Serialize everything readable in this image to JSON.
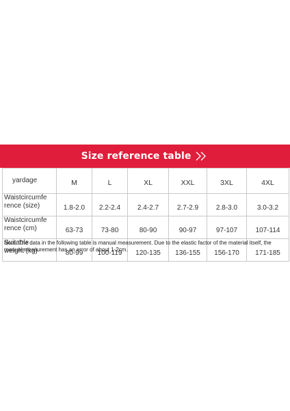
{
  "banner": {
    "title": "Size reference table",
    "accent_color": "#e01d3a",
    "icon": "double-chevron-right-icon"
  },
  "table": {
    "header": {
      "label": "yardage",
      "sizes": [
        "M",
        "L",
        "XL",
        "XXL",
        "3XL",
        "4XL"
      ]
    },
    "rows": [
      {
        "label_line1": "Waistcircumfe",
        "label_line2": "rence (size)",
        "values": [
          "1.8-2.0",
          "2.2-2.4",
          "2.4-2.7",
          "2.7-2.9",
          "2.8-3.0",
          "3.0-3.2"
        ]
      },
      {
        "label_line1": "Waistcircumfe",
        "label_line2": "rence (cm)",
        "values": [
          "63-73",
          "73-80",
          "80-90",
          "90-97",
          "97-107",
          "107-114"
        ]
      },
      {
        "label_line1": "Suitable",
        "label_line2": "weight (kg)",
        "values": [
          "80-99",
          "100-119",
          "120-135",
          "136-155",
          "156-170",
          "171-185"
        ]
      }
    ]
  },
  "note": "Note: The data in the following table is manual measurement. Due to the elastic factor of the material itself, the manual measurement has an error of about 1-2cm."
}
